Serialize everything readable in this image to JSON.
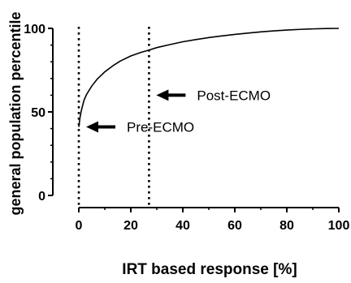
{
  "chart_data": {
    "type": "line",
    "title": "",
    "xlabel": "IRT based response [%]",
    "ylabel": "general population percentile",
    "xlim": [
      0,
      100
    ],
    "ylim": [
      0,
      100
    ],
    "x_ticks": [
      0,
      20,
      40,
      60,
      80,
      100
    ],
    "y_ticks": [
      0,
      50,
      100
    ],
    "x_tick_labels": [
      "0",
      "20",
      "40",
      "60",
      "80",
      "100"
    ],
    "y_tick_labels": [
      "0",
      "50",
      "100"
    ],
    "grid": false,
    "legend": "none",
    "series": [
      {
        "x": [
          0,
          0.5,
          1,
          2,
          3,
          5,
          7,
          10,
          13,
          16,
          20,
          24,
          27,
          30,
          35,
          40,
          45,
          50,
          55,
          60,
          65,
          70,
          75,
          80,
          85,
          90,
          95,
          100
        ],
        "y": [
          41,
          47,
          51,
          57,
          60.5,
          65.5,
          69.5,
          74,
          77.5,
          80.5,
          83.5,
          85.7,
          87,
          88.5,
          90.3,
          92,
          93.3,
          94.5,
          95.5,
          96.4,
          97.2,
          97.9,
          98.5,
          99,
          99.4,
          99.7,
          99.9,
          100
        ],
        "color": "#000000"
      }
    ],
    "reference_lines": [
      {
        "axis": "x",
        "value": 0,
        "style": "dotted"
      },
      {
        "axis": "x",
        "value": 27,
        "style": "dotted"
      }
    ],
    "annotations": [
      {
        "text": "Pre-ECMO",
        "x": 0,
        "y": 41
      },
      {
        "text": "Post-ECMO",
        "x": 27,
        "y": 60
      }
    ]
  }
}
